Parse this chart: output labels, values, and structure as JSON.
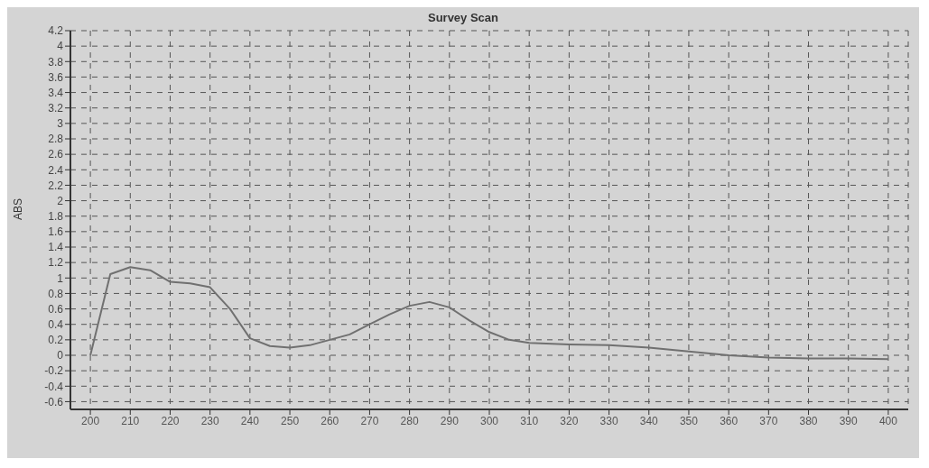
{
  "chart_data": {
    "type": "line",
    "title": "Survey Scan",
    "ylabel": "ABS",
    "x": [
      200,
      205,
      210,
      215,
      220,
      225,
      230,
      235,
      240,
      245,
      250,
      255,
      260,
      265,
      270,
      275,
      280,
      285,
      290,
      295,
      300,
      305,
      310,
      320,
      330,
      340,
      350,
      360,
      370,
      380,
      390,
      400
    ],
    "series": [
      {
        "color": "#707070",
        "values": [
          0,
          1.05,
          1.14,
          1.1,
          0.95,
          0.93,
          0.88,
          0.6,
          0.22,
          0.12,
          0.1,
          0.13,
          0.2,
          0.27,
          0.4,
          0.53,
          0.64,
          0.69,
          0.62,
          0.45,
          0.3,
          0.2,
          0.16,
          0.14,
          0.13,
          0.1,
          0.05,
          0,
          -0.03,
          -0.04,
          -0.04,
          -0.05
        ]
      }
    ],
    "xlim": [
      195,
      405
    ],
    "xticks": [
      200,
      210,
      220,
      230,
      240,
      250,
      260,
      270,
      280,
      290,
      300,
      310,
      320,
      330,
      340,
      350,
      360,
      370,
      380,
      390,
      400
    ],
    "ylim": [
      -0.7,
      4.2
    ],
    "yticks": [
      -0.6,
      -0.4,
      -0.2,
      0,
      0.2,
      0.4,
      0.6,
      0.8,
      1,
      1.2,
      1.4,
      1.6,
      1.8,
      2,
      2.2,
      2.4,
      2.6,
      2.8,
      3,
      3.2,
      3.4,
      3.6,
      3.8,
      4,
      4.2
    ],
    "grid": true,
    "marker": "none",
    "line_style": "solid"
  }
}
